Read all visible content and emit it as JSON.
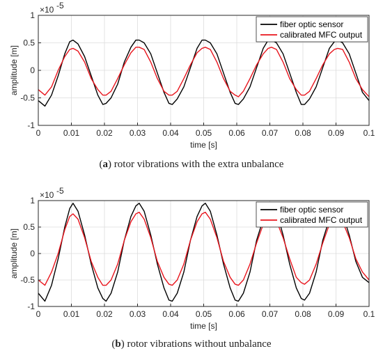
{
  "chart_data": [
    {
      "type": "line",
      "caption_letter": "a",
      "caption_text": "rotor vibrations with the extra unbalance",
      "xlabel": "time [s]",
      "ylabel": "amplitude [m]",
      "y_multiplier": "×10",
      "y_exponent": "-5",
      "xlim": [
        0,
        0.1
      ],
      "ylim": [
        -1,
        1
      ],
      "xticks": [
        0,
        0.01,
        0.02,
        0.03,
        0.04,
        0.05,
        0.06,
        0.07,
        0.08,
        0.09,
        0.1
      ],
      "xtick_labels": [
        "0",
        "0.01",
        "0.02",
        "0.03",
        "0.04",
        "0.05",
        "0.06",
        "0.07",
        "0.08",
        "0.09",
        "0.1"
      ],
      "yticks": [
        -1,
        -0.5,
        0,
        0.5,
        1
      ],
      "ytick_labels": [
        "-1",
        "-0.5",
        "0",
        "0.5",
        "1"
      ],
      "grid": true,
      "legend_placement": "top-right",
      "series": [
        {
          "name": "fiber optic sensor",
          "color": "#000000",
          "x": [
            0,
            0.002,
            0.004,
            0.006,
            0.008,
            0.0095,
            0.0105,
            0.012,
            0.014,
            0.016,
            0.018,
            0.0195,
            0.0205,
            0.022,
            0.024,
            0.026,
            0.028,
            0.0295,
            0.0305,
            0.032,
            0.034,
            0.036,
            0.038,
            0.0395,
            0.0405,
            0.042,
            0.044,
            0.046,
            0.048,
            0.0495,
            0.0505,
            0.052,
            0.054,
            0.056,
            0.058,
            0.0595,
            0.0605,
            0.062,
            0.064,
            0.066,
            0.068,
            0.0695,
            0.0705,
            0.072,
            0.074,
            0.076,
            0.078,
            0.0795,
            0.0805,
            0.082,
            0.084,
            0.086,
            0.088,
            0.0895,
            0.0905,
            0.092,
            0.094,
            0.096,
            0.098,
            0.1
          ],
          "y": [
            -0.55,
            -0.65,
            -0.45,
            -0.1,
            0.3,
            0.52,
            0.55,
            0.48,
            0.25,
            -0.1,
            -0.45,
            -0.62,
            -0.6,
            -0.5,
            -0.25,
            0.15,
            0.42,
            0.55,
            0.55,
            0.5,
            0.3,
            -0.05,
            -0.4,
            -0.6,
            -0.62,
            -0.52,
            -0.3,
            0.05,
            0.4,
            0.55,
            0.55,
            0.5,
            0.3,
            -0.05,
            -0.4,
            -0.6,
            -0.62,
            -0.52,
            -0.3,
            0.05,
            0.4,
            0.55,
            0.55,
            0.5,
            0.3,
            -0.05,
            -0.4,
            -0.62,
            -0.62,
            -0.52,
            -0.3,
            0.05,
            0.4,
            0.52,
            0.55,
            0.5,
            0.3,
            -0.05,
            -0.4,
            -0.55
          ]
        },
        {
          "name": "calibrated MFC output",
          "color": "#e8141c",
          "x": [
            0,
            0.002,
            0.004,
            0.006,
            0.008,
            0.0095,
            0.0105,
            0.012,
            0.014,
            0.016,
            0.018,
            0.0195,
            0.0205,
            0.022,
            0.024,
            0.026,
            0.028,
            0.0295,
            0.0305,
            0.032,
            0.034,
            0.036,
            0.038,
            0.0395,
            0.0405,
            0.042,
            0.044,
            0.046,
            0.048,
            0.0495,
            0.0505,
            0.052,
            0.054,
            0.056,
            0.058,
            0.0595,
            0.0605,
            0.062,
            0.064,
            0.066,
            0.068,
            0.0695,
            0.0705,
            0.072,
            0.074,
            0.076,
            0.078,
            0.0795,
            0.0805,
            0.082,
            0.084,
            0.086,
            0.088,
            0.0895,
            0.0905,
            0.092,
            0.094,
            0.096,
            0.098,
            0.1
          ],
          "y": [
            -0.35,
            -0.45,
            -0.3,
            0.0,
            0.25,
            0.38,
            0.4,
            0.35,
            0.15,
            -0.15,
            -0.35,
            -0.45,
            -0.45,
            -0.38,
            -0.15,
            0.1,
            0.32,
            0.42,
            0.42,
            0.38,
            0.15,
            -0.15,
            -0.38,
            -0.45,
            -0.45,
            -0.38,
            -0.15,
            0.1,
            0.32,
            0.4,
            0.42,
            0.38,
            0.15,
            -0.15,
            -0.38,
            -0.45,
            -0.48,
            -0.38,
            -0.15,
            0.1,
            0.3,
            0.4,
            0.42,
            0.38,
            0.15,
            -0.15,
            -0.35,
            -0.45,
            -0.45,
            -0.38,
            -0.15,
            0.1,
            0.3,
            0.38,
            0.4,
            0.38,
            0.15,
            -0.15,
            -0.35,
            -0.48
          ]
        }
      ]
    },
    {
      "type": "line",
      "caption_letter": "b",
      "caption_text": "rotor vibrations without unbalance",
      "xlabel": "time [s]",
      "ylabel": "amplitude [m]",
      "y_multiplier": "×10",
      "y_exponent": "-5",
      "xlim": [
        0,
        0.1
      ],
      "ylim": [
        -1,
        1
      ],
      "xticks": [
        0,
        0.01,
        0.02,
        0.03,
        0.04,
        0.05,
        0.06,
        0.07,
        0.08,
        0.09,
        0.1
      ],
      "xtick_labels": [
        "0",
        "0.01",
        "0.02",
        "0.03",
        "0.04",
        "0.05",
        "0.06",
        "0.07",
        "0.08",
        "0.09",
        "0.1"
      ],
      "yticks": [
        -1,
        -0.5,
        0,
        0.5,
        1
      ],
      "ytick_labels": [
        "-1",
        "-0.5",
        "0",
        "0.5",
        "1"
      ],
      "grid": true,
      "legend_placement": "top-right",
      "series": [
        {
          "name": "fiber optic sensor",
          "color": "#000000",
          "x": [
            0,
            0.002,
            0.004,
            0.006,
            0.008,
            0.0095,
            0.0105,
            0.012,
            0.014,
            0.016,
            0.018,
            0.0195,
            0.0205,
            0.022,
            0.024,
            0.026,
            0.028,
            0.0295,
            0.0305,
            0.032,
            0.034,
            0.036,
            0.038,
            0.0395,
            0.0405,
            0.042,
            0.044,
            0.046,
            0.048,
            0.0495,
            0.0505,
            0.052,
            0.054,
            0.056,
            0.058,
            0.0595,
            0.0605,
            0.062,
            0.064,
            0.066,
            0.068,
            0.0695,
            0.0705,
            0.072,
            0.074,
            0.076,
            0.078,
            0.0795,
            0.0805,
            0.082,
            0.084,
            0.086,
            0.088,
            0.0895,
            0.0905,
            0.092,
            0.094,
            0.096,
            0.098,
            0.1
          ],
          "y": [
            -0.75,
            -0.9,
            -0.6,
            -0.1,
            0.5,
            0.85,
            0.95,
            0.8,
            0.35,
            -0.2,
            -0.65,
            -0.85,
            -0.9,
            -0.75,
            -0.35,
            0.25,
            0.7,
            0.9,
            0.95,
            0.8,
            0.35,
            -0.2,
            -0.65,
            -0.88,
            -0.9,
            -0.75,
            -0.35,
            0.25,
            0.7,
            0.9,
            0.95,
            0.8,
            0.35,
            -0.2,
            -0.65,
            -0.88,
            -0.9,
            -0.75,
            -0.35,
            0.25,
            0.65,
            0.85,
            0.9,
            0.8,
            0.35,
            -0.2,
            -0.65,
            -0.85,
            -0.88,
            -0.75,
            -0.35,
            0.25,
            0.65,
            0.85,
            0.85,
            0.75,
            0.35,
            -0.15,
            -0.45,
            -0.55
          ]
        },
        {
          "name": "calibrated MFC output",
          "color": "#e8141c",
          "x": [
            0,
            0.002,
            0.004,
            0.006,
            0.008,
            0.0095,
            0.0105,
            0.012,
            0.014,
            0.016,
            0.018,
            0.0195,
            0.0205,
            0.022,
            0.024,
            0.026,
            0.028,
            0.0295,
            0.0305,
            0.032,
            0.034,
            0.036,
            0.038,
            0.0395,
            0.0405,
            0.042,
            0.044,
            0.046,
            0.048,
            0.0495,
            0.0505,
            0.052,
            0.054,
            0.056,
            0.058,
            0.0595,
            0.0605,
            0.062,
            0.064,
            0.066,
            0.068,
            0.0695,
            0.0705,
            0.072,
            0.074,
            0.076,
            0.078,
            0.0795,
            0.0805,
            0.082,
            0.084,
            0.086,
            0.088,
            0.0895,
            0.0905,
            0.092,
            0.094,
            0.096,
            0.098,
            0.1
          ],
          "y": [
            -0.5,
            -0.6,
            -0.35,
            0.0,
            0.45,
            0.7,
            0.75,
            0.65,
            0.3,
            -0.15,
            -0.45,
            -0.6,
            -0.6,
            -0.5,
            -0.2,
            0.25,
            0.6,
            0.75,
            0.78,
            0.65,
            0.3,
            -0.15,
            -0.45,
            -0.58,
            -0.6,
            -0.5,
            -0.2,
            0.25,
            0.6,
            0.75,
            0.78,
            0.65,
            0.3,
            -0.15,
            -0.45,
            -0.58,
            -0.6,
            -0.5,
            -0.2,
            0.2,
            0.55,
            0.7,
            0.72,
            0.62,
            0.3,
            -0.1,
            -0.45,
            -0.55,
            -0.58,
            -0.5,
            -0.2,
            0.2,
            0.55,
            0.65,
            0.68,
            0.6,
            0.3,
            -0.1,
            -0.35,
            -0.5
          ]
        }
      ]
    }
  ]
}
